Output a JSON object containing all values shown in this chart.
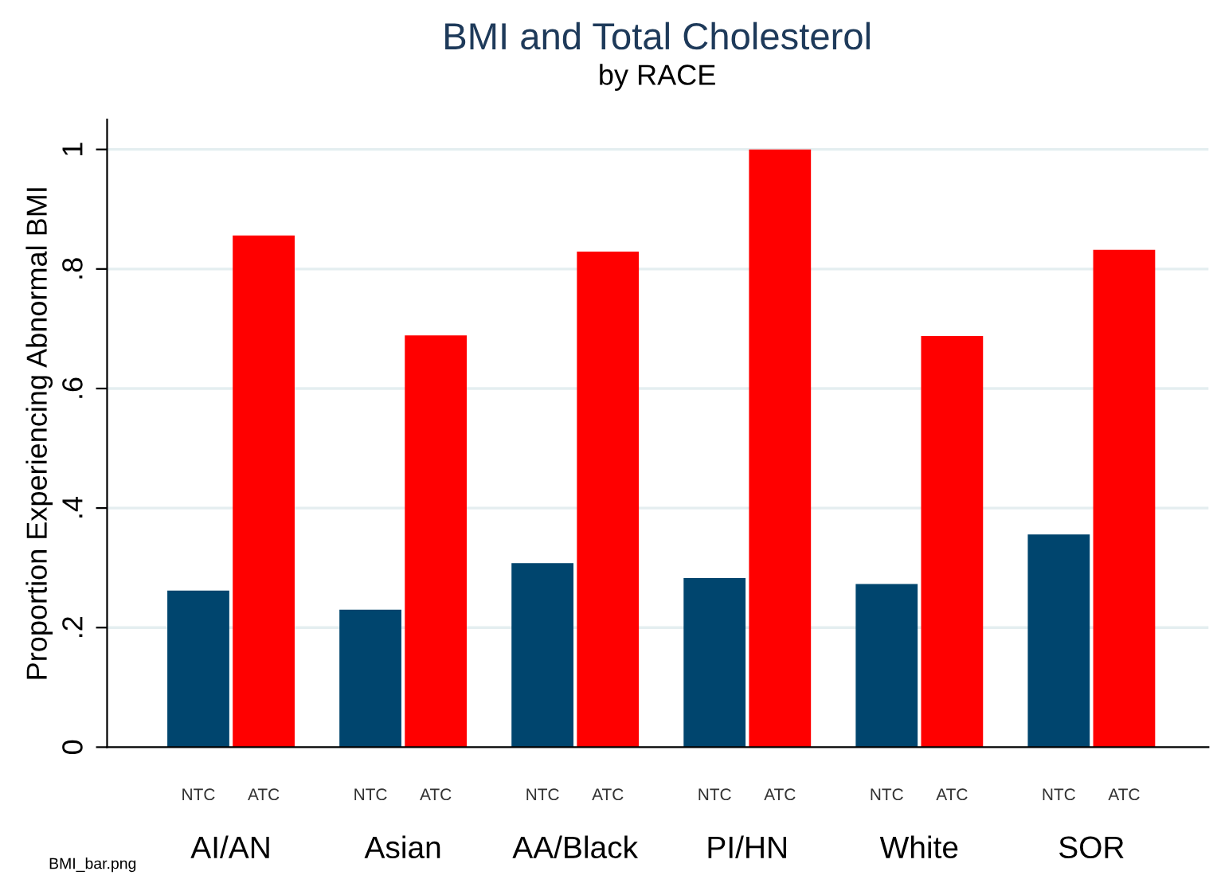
{
  "chart_data": {
    "type": "bar",
    "title": "BMI and Total Cholesterol",
    "subtitle": "by RACE",
    "ylabel": "Proportion Experiencing Abnormal BMI",
    "categories": [
      "AI/AN",
      "Asian",
      "AA/Black",
      "PI/HN",
      "White",
      "SOR"
    ],
    "series": [
      {
        "name": "NTC",
        "color": "#00456e",
        "values": [
          0.262,
          0.23,
          0.308,
          0.283,
          0.273,
          0.356
        ]
      },
      {
        "name": "ATC",
        "color": "#ff0000",
        "values": [
          0.856,
          0.689,
          0.829,
          1.0,
          0.688,
          0.832
        ]
      }
    ],
    "ylim": [
      0,
      1.05
    ],
    "yticks": [
      0,
      {
        "value": 0.2,
        "label": ".2"
      },
      {
        "value": 0.4,
        "label": ".4"
      },
      {
        "value": 0.6,
        "label": ".6"
      },
      {
        "value": 0.8,
        "label": ".8"
      },
      1
    ],
    "grid": "y",
    "legend": false,
    "annotations": [
      "BMI_bar.png"
    ]
  }
}
